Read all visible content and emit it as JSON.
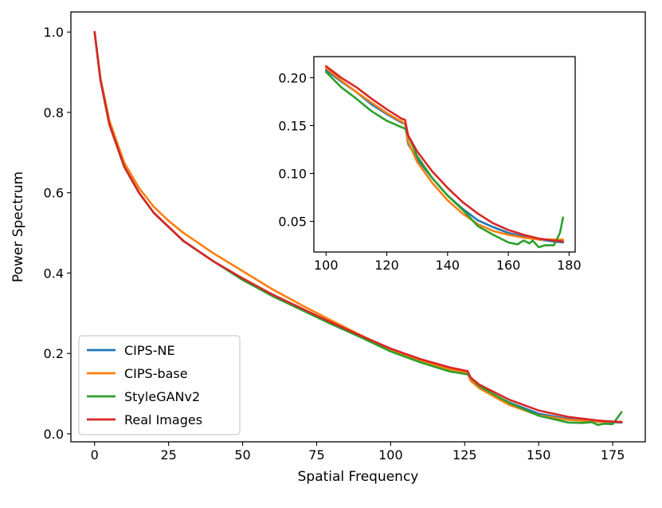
{
  "chart_data": [
    {
      "type": "line",
      "role": "main",
      "title": "",
      "xlabel": "Spatial Frequency",
      "ylabel": "Power Spectrum",
      "xlim": [
        -8,
        186
      ],
      "ylim": [
        -0.02,
        1.05
      ],
      "xticks": [
        0,
        25,
        50,
        75,
        100,
        125,
        150,
        175
      ],
      "yticks": [
        0.0,
        0.2,
        0.4,
        0.6,
        0.8,
        1.0
      ],
      "xtick_labels": [
        "0",
        "25",
        "50",
        "75",
        "100",
        "125",
        "150",
        "175"
      ],
      "ytick_labels": [
        "0.0",
        "0.2",
        "0.4",
        "0.6",
        "0.8",
        "1.0"
      ],
      "legend_position": "lower-left",
      "series": [
        {
          "name": "CIPS-NE",
          "color": "#1f77b4",
          "x": [
            0,
            2,
            5,
            10,
            15,
            20,
            25,
            30,
            40,
            50,
            60,
            70,
            80,
            90,
            100,
            110,
            120,
            126,
            127,
            130,
            140,
            150,
            160,
            170,
            178
          ],
          "y": [
            1.0,
            0.88,
            0.77,
            0.665,
            0.6,
            0.55,
            0.515,
            0.48,
            0.43,
            0.385,
            0.345,
            0.31,
            0.275,
            0.242,
            0.208,
            0.182,
            0.16,
            0.152,
            0.133,
            0.115,
            0.078,
            0.05,
            0.037,
            0.03,
            0.028
          ]
        },
        {
          "name": "CIPS-base",
          "color": "#ff7f0e",
          "x": [
            0,
            2,
            5,
            10,
            15,
            20,
            25,
            30,
            40,
            50,
            60,
            70,
            80,
            90,
            100,
            110,
            120,
            126,
            127,
            130,
            140,
            150,
            160,
            170,
            178
          ],
          "y": [
            1.0,
            0.885,
            0.78,
            0.675,
            0.612,
            0.565,
            0.53,
            0.5,
            0.45,
            0.405,
            0.36,
            0.32,
            0.282,
            0.245,
            0.21,
            0.182,
            0.16,
            0.152,
            0.132,
            0.113,
            0.072,
            0.046,
            0.035,
            0.03,
            0.03
          ]
        },
        {
          "name": "StyleGANv2",
          "color": "#2ca02c",
          "x": [
            0,
            2,
            5,
            10,
            15,
            20,
            25,
            30,
            40,
            50,
            60,
            70,
            80,
            90,
            100,
            110,
            120,
            126,
            127,
            130,
            140,
            150,
            160,
            165,
            168,
            170,
            172,
            175,
            178
          ],
          "y": [
            1.0,
            0.88,
            0.77,
            0.665,
            0.6,
            0.55,
            0.515,
            0.48,
            0.43,
            0.383,
            0.343,
            0.308,
            0.273,
            0.24,
            0.205,
            0.178,
            0.155,
            0.148,
            0.14,
            0.118,
            0.077,
            0.045,
            0.028,
            0.027,
            0.029,
            0.022,
            0.025,
            0.024,
            0.054
          ]
        },
        {
          "name": "Real Images",
          "color": "#d62728",
          "x": [
            0,
            2,
            5,
            10,
            15,
            20,
            25,
            30,
            40,
            50,
            60,
            70,
            80,
            90,
            100,
            110,
            120,
            126,
            127,
            130,
            140,
            150,
            160,
            170,
            178
          ],
          "y": [
            1.0,
            0.88,
            0.77,
            0.665,
            0.6,
            0.55,
            0.515,
            0.48,
            0.43,
            0.387,
            0.347,
            0.312,
            0.277,
            0.244,
            0.212,
            0.186,
            0.165,
            0.156,
            0.14,
            0.122,
            0.085,
            0.058,
            0.042,
            0.033,
            0.029
          ]
        }
      ]
    },
    {
      "type": "line",
      "role": "inset",
      "title": "",
      "xlabel": "",
      "ylabel": "",
      "xlim": [
        96,
        182
      ],
      "ylim": [
        0.018,
        0.222
      ],
      "xticks": [
        100,
        120,
        140,
        160,
        180
      ],
      "yticks": [
        0.05,
        0.1,
        0.15,
        0.2
      ],
      "xtick_labels": [
        "100",
        "120",
        "140",
        "160",
        "180"
      ],
      "ytick_labels": [
        "0.05",
        "0.10",
        "0.15",
        "0.20"
      ],
      "series": [
        {
          "name": "CIPS-NE",
          "color": "#1f77b4",
          "x": [
            100,
            105,
            110,
            115,
            120,
            125,
            126,
            127,
            130,
            135,
            140,
            145,
            150,
            155,
            160,
            165,
            170,
            175,
            178
          ],
          "y": [
            0.208,
            0.196,
            0.185,
            0.172,
            0.162,
            0.153,
            0.152,
            0.131,
            0.115,
            0.095,
            0.077,
            0.063,
            0.051,
            0.044,
            0.038,
            0.034,
            0.031,
            0.029,
            0.028
          ]
        },
        {
          "name": "CIPS-base",
          "color": "#ff7f0e",
          "x": [
            100,
            105,
            110,
            115,
            120,
            125,
            126,
            127,
            130,
            135,
            140,
            145,
            150,
            155,
            160,
            165,
            170,
            175,
            178
          ],
          "y": [
            0.21,
            0.197,
            0.185,
            0.174,
            0.163,
            0.154,
            0.152,
            0.133,
            0.112,
            0.09,
            0.072,
            0.058,
            0.047,
            0.04,
            0.036,
            0.033,
            0.031,
            0.031,
            0.031
          ]
        },
        {
          "name": "StyleGANv2",
          "color": "#2ca02c",
          "x": [
            100,
            105,
            110,
            115,
            120,
            125,
            126,
            127,
            130,
            135,
            140,
            145,
            150,
            155,
            160,
            163,
            165,
            167,
            168,
            170,
            172,
            175,
            177,
            178
          ],
          "y": [
            0.206,
            0.19,
            0.178,
            0.165,
            0.155,
            0.148,
            0.147,
            0.14,
            0.118,
            0.095,
            0.077,
            0.062,
            0.045,
            0.036,
            0.028,
            0.026,
            0.03,
            0.027,
            0.03,
            0.023,
            0.025,
            0.025,
            0.038,
            0.054
          ]
        },
        {
          "name": "Real Images",
          "color": "#d62728",
          "x": [
            100,
            105,
            110,
            115,
            120,
            125,
            126,
            127,
            130,
            135,
            140,
            145,
            150,
            155,
            160,
            165,
            170,
            175,
            178
          ],
          "y": [
            0.212,
            0.2,
            0.19,
            0.178,
            0.167,
            0.157,
            0.156,
            0.14,
            0.123,
            0.102,
            0.085,
            0.07,
            0.058,
            0.048,
            0.041,
            0.036,
            0.032,
            0.03,
            0.029
          ]
        }
      ]
    }
  ]
}
